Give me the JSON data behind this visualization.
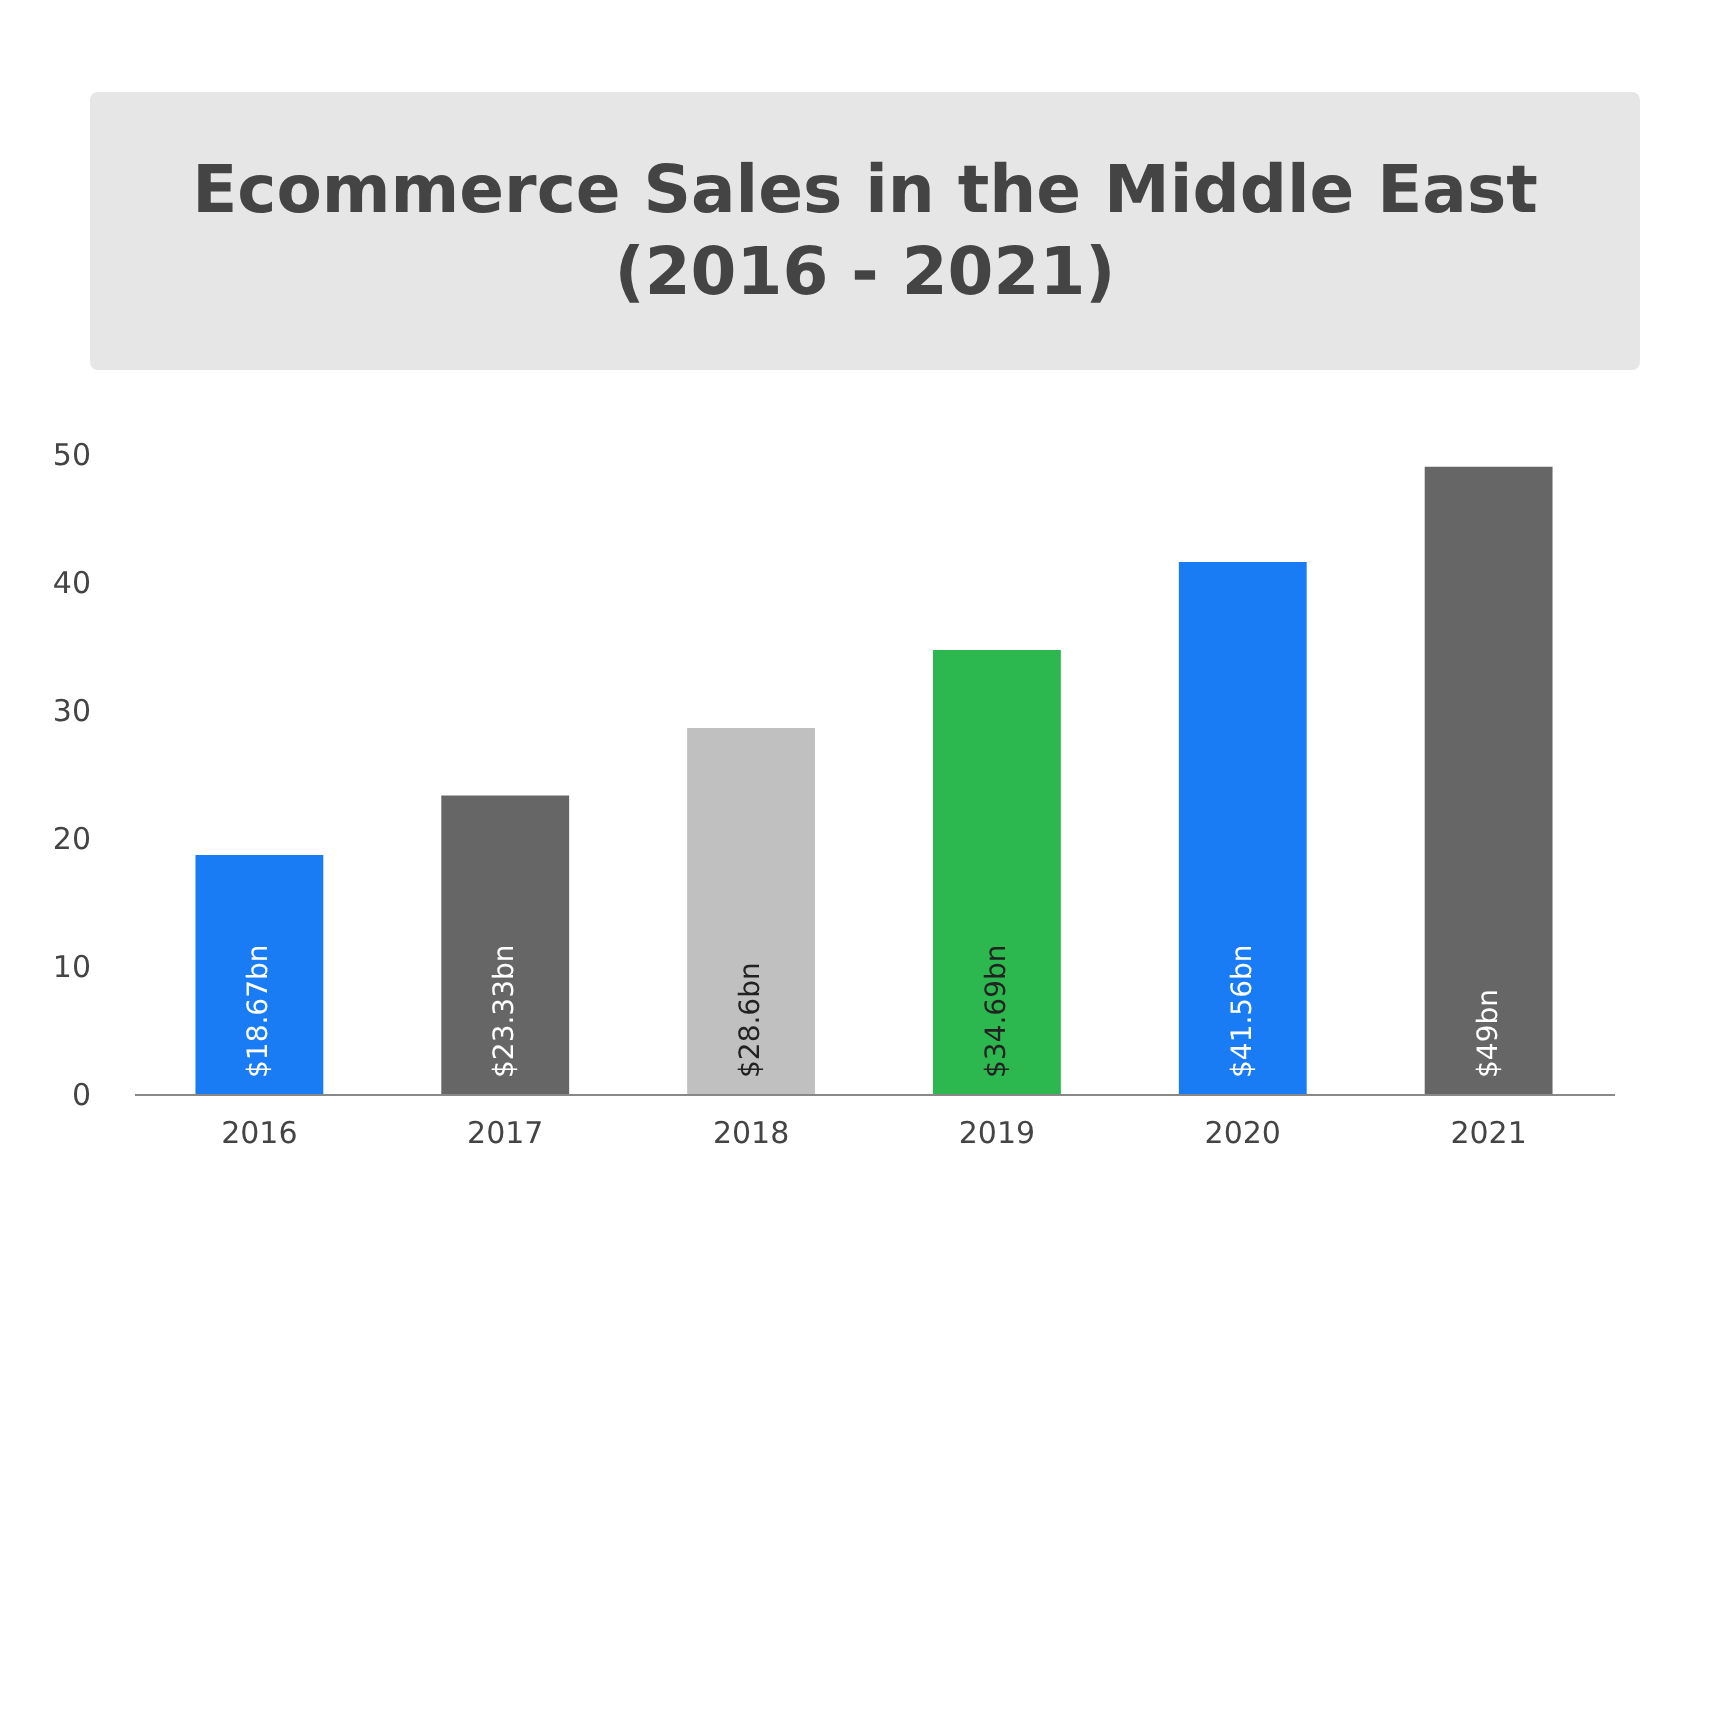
{
  "chart_data": {
    "type": "bar",
    "title": "Ecommerce Sales in the Middle East\n(2016 - 2021)",
    "categories": [
      "2016",
      "2017",
      "2018",
      "2019",
      "2020",
      "2021"
    ],
    "values": [
      18.67,
      23.33,
      28.6,
      34.69,
      41.56,
      49
    ],
    "colors": [
      "#1a7cf5",
      "#666666",
      "#c0c0c0",
      "#2db84f",
      "#1a7cf5",
      "#666666"
    ],
    "value_labels": [
      "$18.67bn",
      "$23.33bn",
      "$28.6bn",
      "$34.69bn",
      "$41.56bn",
      "$49bn"
    ],
    "ylim": [
      0,
      50
    ],
    "yticks": [
      0,
      10,
      20,
      30,
      40,
      50
    ],
    "grid": false
  }
}
